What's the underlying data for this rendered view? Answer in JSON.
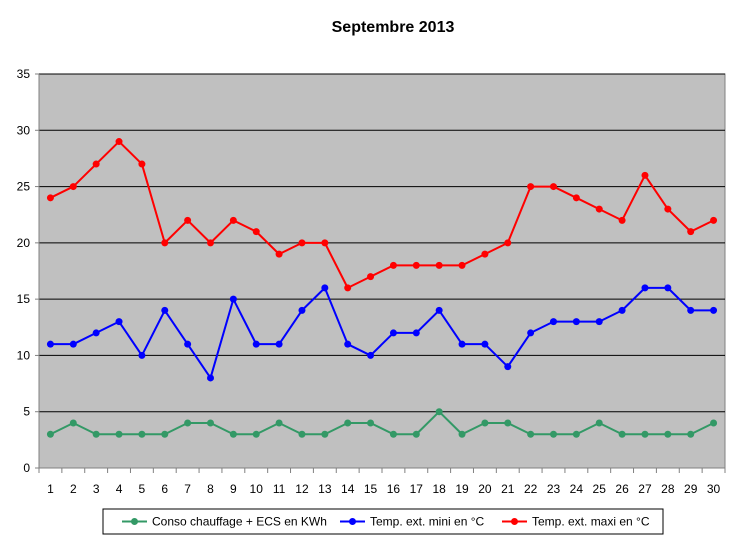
{
  "chart_data": {
    "type": "line",
    "title": "Septembre 2013",
    "xlabel": "",
    "ylabel": "",
    "x": [
      1,
      2,
      3,
      4,
      5,
      6,
      7,
      8,
      9,
      10,
      11,
      12,
      13,
      14,
      15,
      16,
      17,
      18,
      19,
      20,
      21,
      22,
      23,
      24,
      25,
      26,
      27,
      28,
      29,
      30
    ],
    "ylim": [
      0,
      35
    ],
    "yticks": [
      0,
      5,
      10,
      15,
      20,
      25,
      30,
      35
    ],
    "grid": true,
    "plot_background": "#C0C0C0",
    "legend_position": "bottom",
    "series": [
      {
        "name": "Conso chauffage + ECS en KWh",
        "color": "#339966",
        "values": [
          3,
          4,
          3,
          3,
          3,
          3,
          4,
          4,
          3,
          3,
          4,
          3,
          3,
          4,
          4,
          3,
          3,
          5,
          3,
          4,
          4,
          3,
          3,
          3,
          4,
          3,
          3,
          3,
          3,
          4
        ]
      },
      {
        "name": "Temp. ext. mini en °C",
        "color": "#0000FF",
        "values": [
          11,
          11,
          12,
          13,
          10,
          14,
          11,
          8,
          15,
          11,
          11,
          14,
          16,
          11,
          10,
          12,
          12,
          14,
          11,
          11,
          9,
          12,
          13,
          13,
          13,
          14,
          16,
          16,
          14,
          14
        ]
      },
      {
        "name": "Temp. ext. maxi en °C",
        "color": "#FF0000",
        "values": [
          24,
          25,
          27,
          29,
          27,
          20,
          22,
          20,
          22,
          21,
          19,
          20,
          20,
          16,
          17,
          18,
          18,
          18,
          18,
          19,
          20,
          25,
          25,
          24,
          23,
          22,
          26,
          23,
          21,
          22
        ]
      }
    ]
  }
}
